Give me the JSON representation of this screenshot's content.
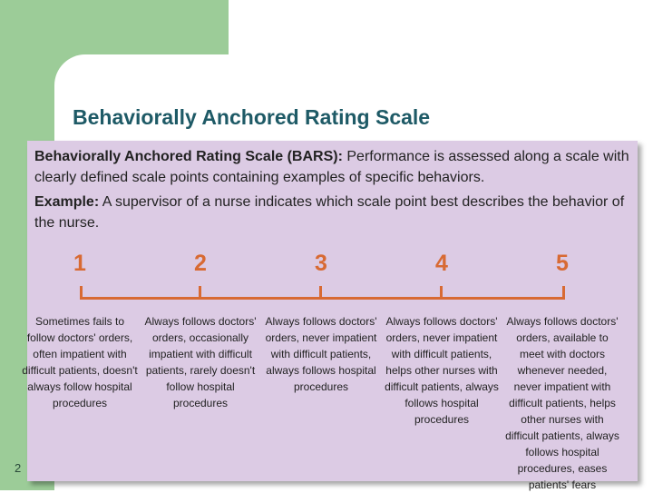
{
  "slide": {
    "title": "Behaviorally Anchored Rating Scale",
    "page_number": "2"
  },
  "bars": {
    "term": "Behaviorally Anchored Rating Scale (BARS):",
    "definition": " Performance is assessed along a scale with clearly defined scale points containing examples of specific behaviors.",
    "example_label": "Example:",
    "example_text": " A supervisor of a nurse indicates which scale point best describes the behavior of the nurse."
  },
  "scale": {
    "points": [
      {
        "number": "1",
        "anchor": "Sometimes fails to follow doctors' orders, often impatient with difficult patients, doesn't always follow hospital procedures"
      },
      {
        "number": "2",
        "anchor": "Always follows doctors' orders, occasionally impatient with difficult patients, rarely doesn't follow hospital procedures"
      },
      {
        "number": "3",
        "anchor": "Always follows doctors' orders, never impatient with difficult patients, always follows hospital procedures"
      },
      {
        "number": "4",
        "anchor": "Always follows doctors' orders, never impatient with difficult patients, helps other nurses with difficult patients, always follows hospital procedures"
      },
      {
        "number": "5",
        "anchor": "Always follows doctors' orders, available to meet with doctors whenever needed, never impatient with difficult patients, helps other nurses with difficult patients, always follows hospital procedures, eases patients' fears"
      }
    ]
  }
}
